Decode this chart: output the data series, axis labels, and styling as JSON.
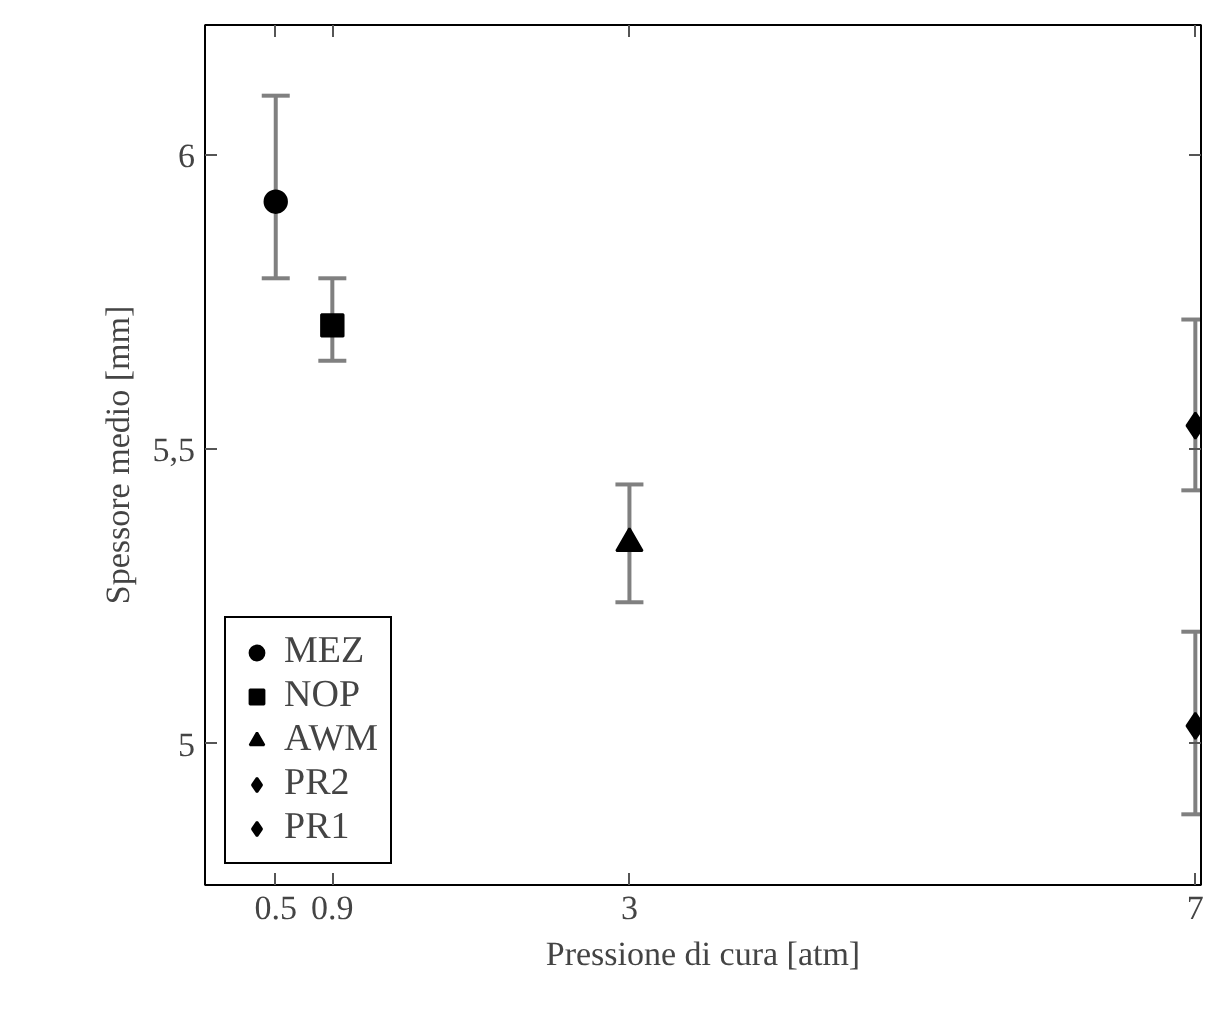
{
  "chart_data": {
    "type": "scatter",
    "xlabel": "Pressione di cura [atm]",
    "ylabel": "Spessore medio [mm]",
    "xlim": [
      0,
      7.04
    ],
    "ylim": [
      4.76,
      6.22
    ],
    "xticks": [
      0.5,
      0.9,
      3,
      7
    ],
    "yticks": [
      5,
      {
        "value": 5.5,
        "label": "5,5"
      },
      6
    ],
    "grid": false,
    "legend": "bottom left",
    "series": [
      {
        "name": "MEZ",
        "color": "#000000",
        "marker": "circle",
        "x": [
          0.5
        ],
        "values": [
          5.92
        ],
        "errors": [
          [
            5.79,
            6.1
          ]
        ]
      },
      {
        "name": "NOP",
        "color": "#000000",
        "marker": "square",
        "x": [
          0.9
        ],
        "values": [
          5.71
        ],
        "errors": [
          [
            5.65,
            5.79
          ]
        ]
      },
      {
        "name": "AWM",
        "color": "#000000",
        "marker": "triangle",
        "x": [
          3
        ],
        "values": [
          5.34
        ],
        "errors": [
          [
            5.24,
            5.44
          ]
        ]
      },
      {
        "name": "PR2",
        "color": "#000000",
        "marker": "diamond",
        "x": [
          7
        ],
        "values": [
          5.54
        ],
        "errors": [
          [
            5.43,
            5.72
          ]
        ]
      },
      {
        "name": "PR1",
        "color": "#000000",
        "marker": "diamond",
        "x": [
          7
        ],
        "values": [
          5.03
        ],
        "errors": [
          [
            4.88,
            5.19
          ]
        ]
      }
    ]
  }
}
